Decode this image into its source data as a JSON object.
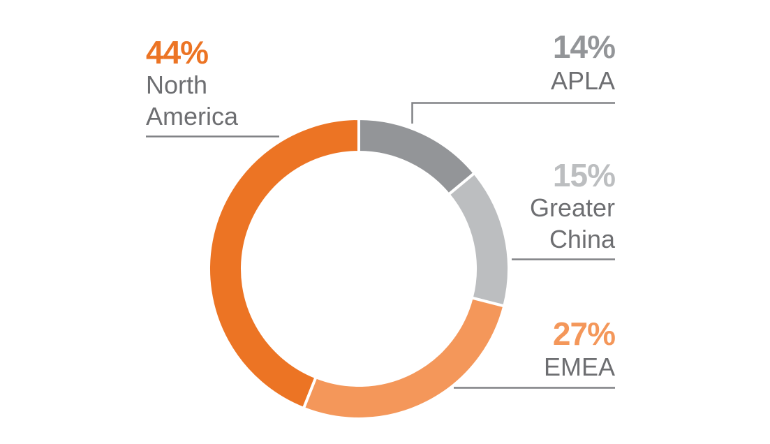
{
  "chart_data": {
    "type": "pie",
    "style": "donut",
    "slices": [
      {
        "label": "APLA",
        "value": 14,
        "value_text": "14%",
        "color": "#939598"
      },
      {
        "label": "Greater China",
        "value": 15,
        "value_text": "15%",
        "color": "#bcbec0"
      },
      {
        "label": "EMEA",
        "value": 27,
        "value_text": "27%",
        "color": "#f4975a"
      },
      {
        "label": "North America",
        "value": 44,
        "value_text": "44%",
        "color": "#ec7424"
      }
    ],
    "labels": {
      "north_america": {
        "pct": "44%",
        "name_line1": "North",
        "name_line2": "America",
        "color": "#ec7424"
      },
      "apla": {
        "pct": "14%",
        "name_line1": "APLA",
        "color": "#939598"
      },
      "greater_china": {
        "pct": "15%",
        "name_line1": "Greater",
        "name_line2": "China",
        "color": "#bcbec0"
      },
      "emea": {
        "pct": "27%",
        "name_line1": "EMEA",
        "color": "#f4975a"
      }
    },
    "leader_line_color": "#808285"
  }
}
